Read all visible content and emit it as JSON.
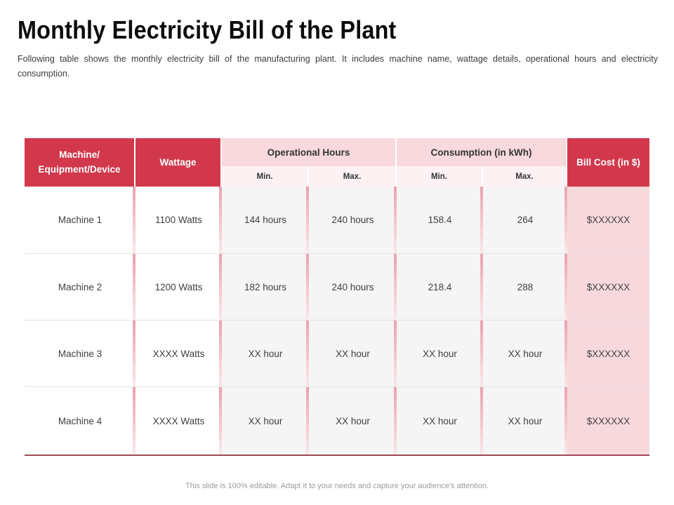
{
  "slide": {
    "title": "Monthly Electricity Bill of the Plant",
    "subtitle": "Following table shows the monthly electricity bill of the manufacturing plant. It includes machine name, wattage details, operational hours and electricity consumption.",
    "footer": "This slide is 100% editable. Adapt it to your needs and capture your audience's attention."
  },
  "colors": {
    "accent_red": "#d2384c",
    "group_header_pink": "#f8d9de",
    "subheader_pink": "#fdf1f3",
    "data_cell_gray": "#f5f5f5",
    "bill_column_pink": "#f7d9dd",
    "separator_pink": "#eca1ae",
    "table_bottom_line": "#9a4a57"
  },
  "table": {
    "headers": {
      "machine_line1": "Machine/",
      "machine_line2": "Equipment/Device",
      "wattage": "Wattage",
      "operational": "Operational Hours",
      "consumption": "Consumption (in kWh)",
      "bill": "Bill Cost (in $)",
      "min": "Min.",
      "max": "Max."
    },
    "rows": [
      {
        "machine": "Machine 1",
        "wattage": "1100 Watts",
        "op_min": "144 hours",
        "op_max": "240 hours",
        "cons_min": "158.4",
        "cons_max": "264",
        "bill": "$XXXXXX"
      },
      {
        "machine": "Machine 2",
        "wattage": "1200 Watts",
        "op_min": "182 hours",
        "op_max": "240 hours",
        "cons_min": "218.4",
        "cons_max": "288",
        "bill": "$XXXXXX"
      },
      {
        "machine": "Machine 3",
        "wattage": "XXXX Watts",
        "op_min": "XX hour",
        "op_max": "XX hour",
        "cons_min": "XX hour",
        "cons_max": "XX hour",
        "bill": "$XXXXXX"
      },
      {
        "machine": "Machine 4",
        "wattage": "XXXX Watts",
        "op_min": "XX hour",
        "op_max": "XX hour",
        "cons_min": "XX hour",
        "cons_max": "XX hour",
        "bill": "$XXXXXX"
      }
    ]
  }
}
